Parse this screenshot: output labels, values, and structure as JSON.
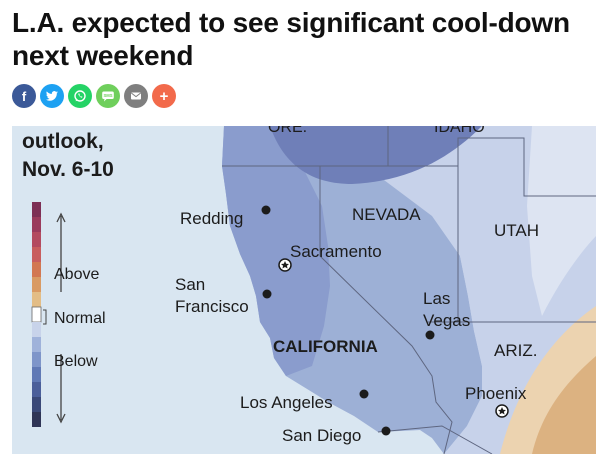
{
  "article": {
    "headline": "L.A. expected to see significant cool-down next weekend"
  },
  "share": {
    "buttons": [
      {
        "name": "facebook",
        "icon": "facebook-icon",
        "color": "#3b5998",
        "glyph": "f"
      },
      {
        "name": "twitter",
        "icon": "twitter-icon",
        "color": "#1da1f2"
      },
      {
        "name": "whatsapp",
        "icon": "whatsapp-icon",
        "color": "#25d366"
      },
      {
        "name": "sms",
        "icon": "sms-icon",
        "color": "#6fcf5c",
        "glyph": "SMS"
      },
      {
        "name": "email",
        "icon": "email-icon",
        "color": "#7f7f7f"
      },
      {
        "name": "more",
        "icon": "plus-icon",
        "color": "#f26a4b",
        "glyph": "+"
      }
    ]
  },
  "map": {
    "title_line1": "outlook,",
    "title_line2": "Nov. 6-10",
    "legend": {
      "above": "Above",
      "normal": "Normal",
      "below": "Below",
      "colors": [
        "#7d2f55",
        "#9a3a5c",
        "#b34a60",
        "#c85d5e",
        "#d27752",
        "#d99a63",
        "#e3bd86",
        "#ffffff",
        "#c8d3ea",
        "#9fb2da",
        "#7e95c9",
        "#6079b5",
        "#4b5f9a",
        "#3a4978",
        "#2f3556"
      ]
    },
    "states": {
      "nevada": "NEVADA",
      "utah": "UTAH",
      "arizona": "ARIZ.",
      "california": "CALIFORNIA",
      "oregon": "ORE.",
      "idaho": "IDAHO"
    },
    "cities": {
      "redding": "Redding",
      "sacramento": "Sacramento",
      "san_francisco_1": "San",
      "san_francisco_2": "Francisco",
      "las_vegas_1": "Las",
      "las_vegas_2": "Vegas",
      "los_angeles": "Los Angeles",
      "phoenix": "Phoenix",
      "san_diego": "San Diego"
    },
    "colors": {
      "ocean": "#d9e6f1",
      "below_light": "#9db0d6",
      "below_mid": "#8598c9",
      "below_dark": "#6f7fb8",
      "near_normal": "#c7d2ea",
      "near_normal_light": "#dde4f2",
      "above_light": "#ecd3b0",
      "above_mid": "#dcb281"
    }
  }
}
